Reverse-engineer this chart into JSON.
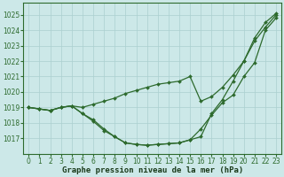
{
  "title": "Graphe pression niveau de la mer (hPa)",
  "x": [
    0,
    1,
    2,
    3,
    4,
    5,
    6,
    7,
    8,
    9,
    10,
    11,
    12,
    13,
    14,
    15,
    16,
    17,
    18,
    19,
    20,
    21,
    22,
    23
  ],
  "line1": [
    1019.0,
    1018.9,
    1018.8,
    1019.0,
    1019.1,
    1018.6,
    1018.2,
    1017.6,
    1017.1,
    1016.7,
    1016.6,
    1016.55,
    1016.6,
    1016.65,
    1016.7,
    1016.9,
    1017.6,
    1018.5,
    1019.3,
    1019.8,
    1021.0,
    1021.9,
    1024.0,
    1024.8
  ],
  "line2": [
    1019.0,
    1018.9,
    1018.8,
    1019.0,
    1019.1,
    1019.0,
    1019.2,
    1019.4,
    1019.6,
    1019.9,
    1020.1,
    1020.3,
    1020.5,
    1020.6,
    1020.7,
    1021.0,
    1019.4,
    1019.7,
    1020.3,
    1021.1,
    1022.0,
    1023.3,
    1024.2,
    1025.0
  ],
  "line3": [
    1019.0,
    1018.9,
    1018.8,
    1019.0,
    1019.1,
    1018.6,
    1018.1,
    1017.5,
    1017.1,
    1016.7,
    1016.6,
    1016.55,
    1016.6,
    1016.65,
    1016.7,
    1016.9,
    1017.1,
    1018.6,
    1019.5,
    1020.7,
    1022.0,
    1023.5,
    1024.5,
    1025.1
  ],
  "ylim": [
    1016.0,
    1025.8
  ],
  "yticks": [
    1017,
    1018,
    1019,
    1020,
    1021,
    1022,
    1023,
    1024,
    1025
  ],
  "line_color": "#2d6a2d",
  "bg_color": "#cce8e8",
  "grid_color": "#aacfcf",
  "marker": "D",
  "marker_size": 2.0,
  "line_width": 0.9,
  "title_fontsize": 6.5,
  "tick_fontsize": 5.5
}
